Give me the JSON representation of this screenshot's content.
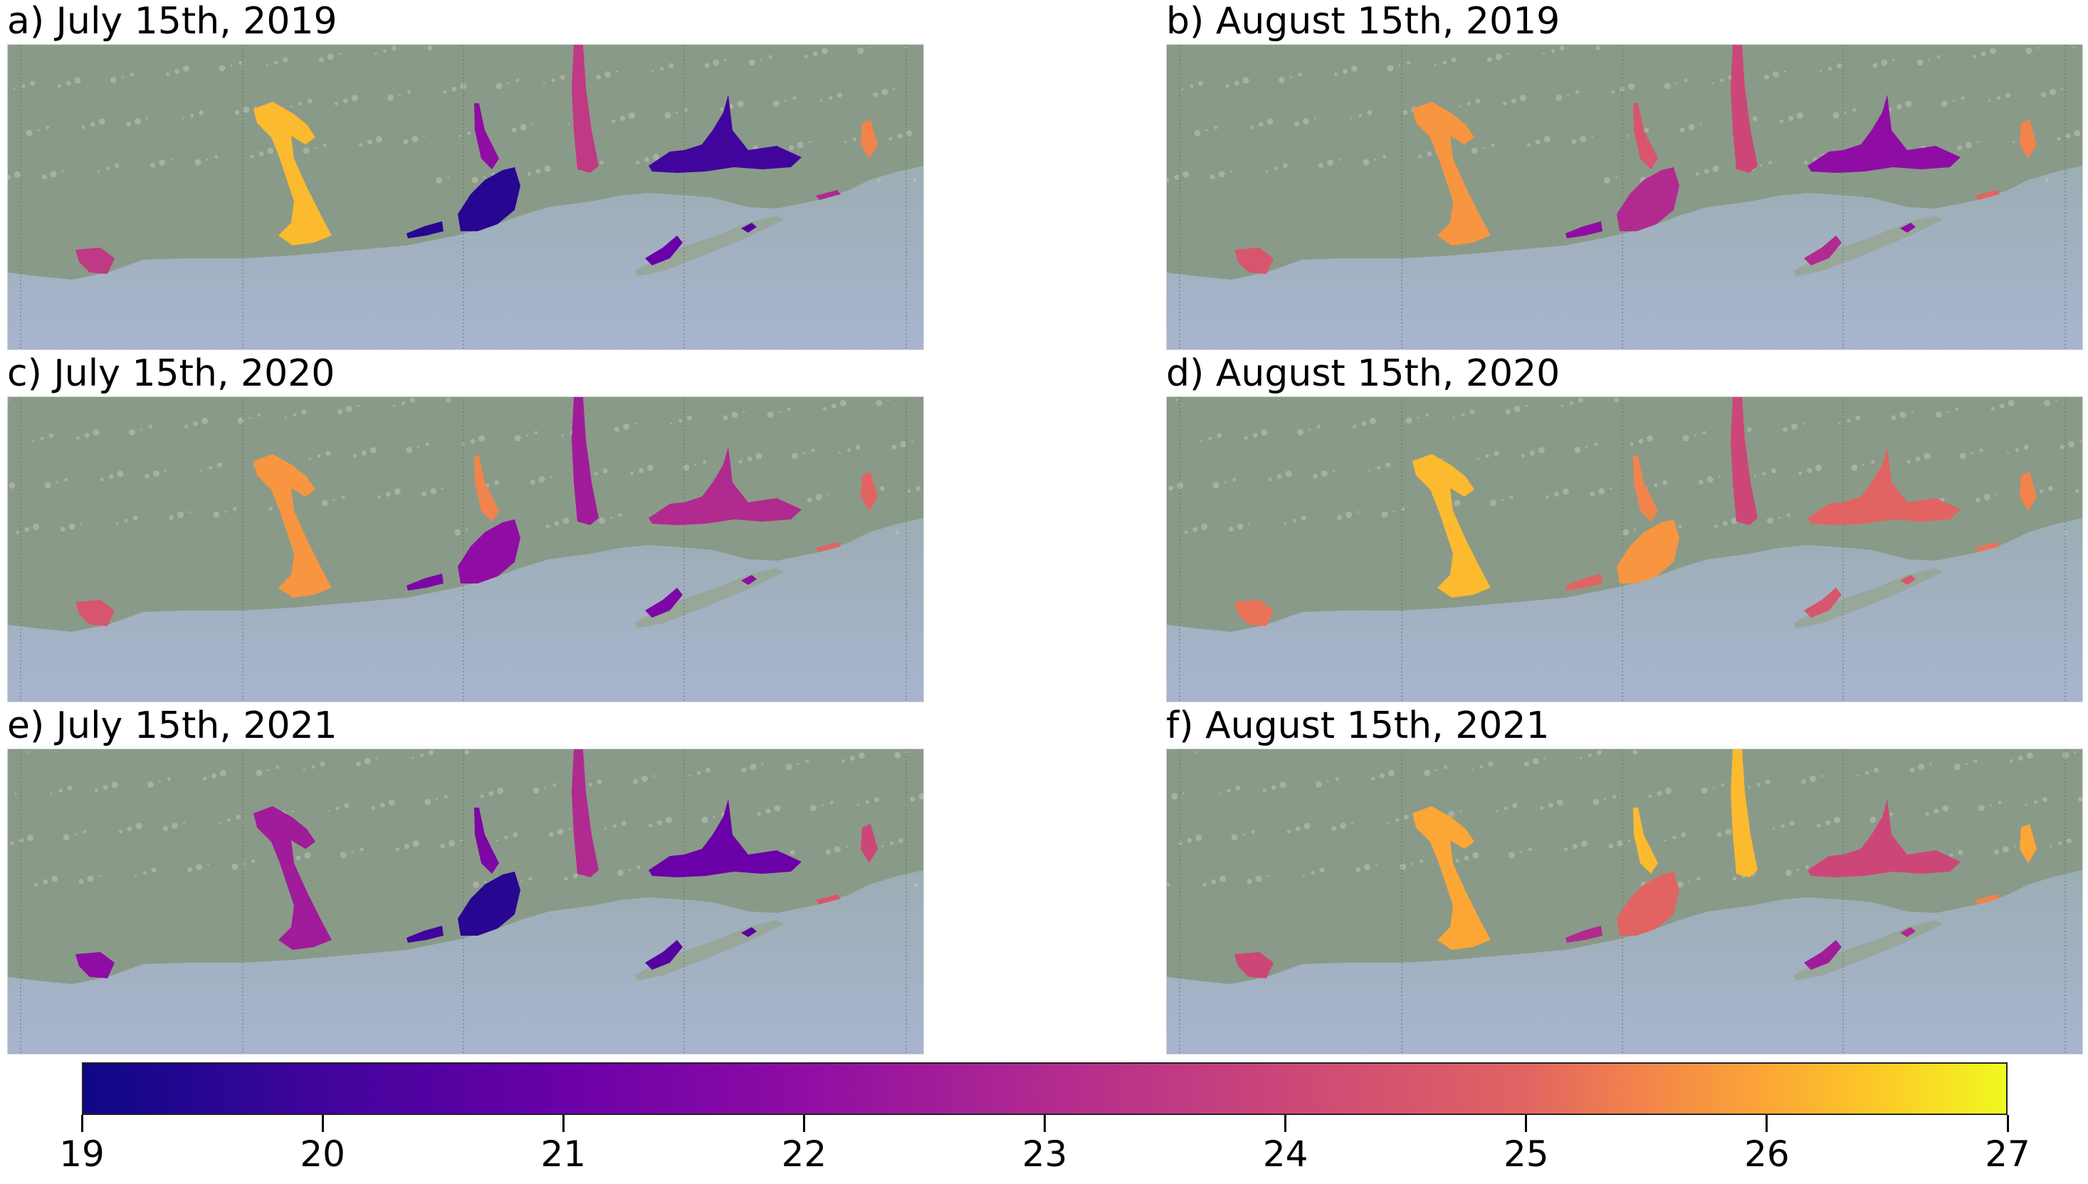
{
  "panels": [
    {
      "id": "a",
      "title": "a) July 15th, 2019"
    },
    {
      "id": "b",
      "title": "b) August 15th, 2019"
    },
    {
      "id": "c",
      "title": "c) July 15th, 2020"
    },
    {
      "id": "d",
      "title": "d) August 15th, 2020"
    },
    {
      "id": "e",
      "title": "e) July 15th, 2021"
    },
    {
      "id": "f",
      "title": "f) August 15th, 2021"
    }
  ],
  "colorbar": {
    "colormap": "plasma",
    "min": 19,
    "max": 27,
    "ticks": [
      "19",
      "20",
      "21",
      "22",
      "23",
      "24",
      "25",
      "26",
      "27"
    ]
  },
  "colors": {
    "land": "#8a9a88",
    "water_near": "#93a9a3",
    "water_far": "#a9b4cf"
  }
}
